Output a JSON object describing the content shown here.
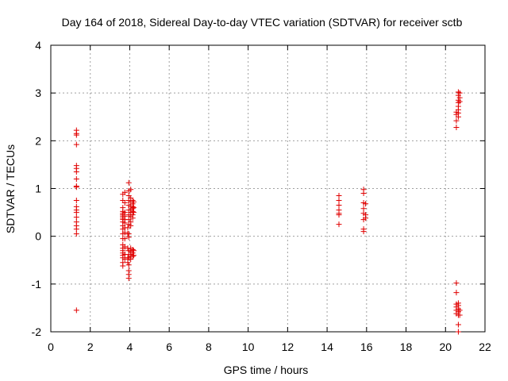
{
  "chart_data": {
    "type": "scatter",
    "title": "Day 164 of 2018, Sidereal Day-to-day VTEC variation (SDTVAR) for receiver sctb",
    "xlabel": "GPS time / hours",
    "ylabel": "SDTVAR / TECUs",
    "xlim": [
      0,
      22
    ],
    "ylim": [
      -2,
      4
    ],
    "xticks": [
      0,
      2,
      4,
      6,
      8,
      10,
      12,
      14,
      16,
      18,
      20,
      22
    ],
    "yticks": [
      -2,
      -1,
      0,
      1,
      2,
      3,
      4
    ],
    "grid": true,
    "marker": "+",
    "color": "#e00000",
    "series": [
      {
        "name": "SDTVAR",
        "points": [
          [
            1.3,
            2.22
          ],
          [
            1.3,
            2.15
          ],
          [
            1.3,
            2.12
          ],
          [
            1.3,
            1.92
          ],
          [
            1.3,
            1.48
          ],
          [
            1.3,
            1.42
          ],
          [
            1.3,
            1.35
          ],
          [
            1.3,
            1.2
          ],
          [
            1.3,
            1.05
          ],
          [
            1.3,
            1.03
          ],
          [
            1.3,
            0.75
          ],
          [
            1.3,
            0.62
          ],
          [
            1.3,
            0.55
          ],
          [
            1.3,
            0.5
          ],
          [
            1.3,
            0.4
          ],
          [
            1.3,
            0.3
          ],
          [
            1.3,
            0.22
          ],
          [
            1.3,
            0.15
          ],
          [
            1.3,
            0.05
          ],
          [
            1.3,
            -1.55
          ],
          [
            3.65,
            0.88
          ],
          [
            3.65,
            0.75
          ],
          [
            3.65,
            0.6
          ],
          [
            3.65,
            0.52
          ],
          [
            3.65,
            0.48
          ],
          [
            3.65,
            0.45
          ],
          [
            3.65,
            0.42
          ],
          [
            3.65,
            0.38
          ],
          [
            3.65,
            0.35
          ],
          [
            3.65,
            0.3
          ],
          [
            3.65,
            0.22
          ],
          [
            3.65,
            0.15
          ],
          [
            3.65,
            0.05
          ],
          [
            3.65,
            -0.05
          ],
          [
            3.65,
            -0.18
          ],
          [
            3.65,
            -0.25
          ],
          [
            3.65,
            -0.3
          ],
          [
            3.65,
            -0.35
          ],
          [
            3.65,
            -0.4
          ],
          [
            3.65,
            -0.45
          ],
          [
            3.65,
            -0.55
          ],
          [
            3.65,
            -0.62
          ],
          [
            3.75,
            0.92
          ],
          [
            3.75,
            0.7
          ],
          [
            3.75,
            0.5
          ],
          [
            3.75,
            0.42
          ],
          [
            3.75,
            0.35
          ],
          [
            3.75,
            0.28
          ],
          [
            3.75,
            0.18
          ],
          [
            3.75,
            0.08
          ],
          [
            3.75,
            -0.05
          ],
          [
            3.75,
            -0.22
          ],
          [
            3.75,
            -0.38
          ],
          [
            3.75,
            -0.48
          ],
          [
            3.9,
            0.18
          ],
          [
            3.9,
            0.05
          ],
          [
            3.9,
            -0.25
          ],
          [
            3.9,
            -0.45
          ],
          [
            3.9,
            -0.55
          ],
          [
            3.95,
            1.12
          ],
          [
            3.95,
            0.95
          ],
          [
            3.95,
            0.85
          ],
          [
            3.95,
            0.75
          ],
          [
            3.95,
            0.65
          ],
          [
            3.95,
            0.55
          ],
          [
            3.95,
            0.45
          ],
          [
            3.95,
            0.35
          ],
          [
            3.95,
            0.25
          ],
          [
            3.95,
            0.05
          ],
          [
            3.95,
            -0.02
          ],
          [
            3.95,
            -0.3
          ],
          [
            3.95,
            -0.38
          ],
          [
            3.95,
            -0.45
          ],
          [
            3.95,
            -0.6
          ],
          [
            3.95,
            -0.72
          ],
          [
            3.95,
            -0.8
          ],
          [
            3.95,
            -0.88
          ],
          [
            4.05,
            0.98
          ],
          [
            4.05,
            0.8
          ],
          [
            4.05,
            0.72
          ],
          [
            4.05,
            0.62
          ],
          [
            4.05,
            0.55
          ],
          [
            4.05,
            0.5
          ],
          [
            4.05,
            0.42
          ],
          [
            4.05,
            0.3
          ],
          [
            4.05,
            0.22
          ],
          [
            4.05,
            -0.25
          ],
          [
            4.05,
            -0.32
          ],
          [
            4.05,
            -0.38
          ],
          [
            4.05,
            -0.42
          ],
          [
            4.05,
            -0.48
          ],
          [
            4.15,
            0.75
          ],
          [
            4.15,
            0.68
          ],
          [
            4.15,
            0.62
          ],
          [
            4.15,
            0.58
          ],
          [
            4.15,
            0.52
          ],
          [
            4.15,
            0.45
          ],
          [
            4.15,
            0.38
          ],
          [
            4.15,
            -0.28
          ],
          [
            4.15,
            -0.35
          ],
          [
            4.15,
            -0.42
          ],
          [
            4.2,
            0.72
          ],
          [
            4.2,
            0.6
          ],
          [
            4.2,
            0.5
          ],
          [
            4.2,
            -0.3
          ],
          [
            4.2,
            -0.4
          ],
          [
            14.6,
            0.85
          ],
          [
            14.6,
            0.75
          ],
          [
            14.6,
            0.65
          ],
          [
            14.6,
            0.55
          ],
          [
            14.6,
            0.48
          ],
          [
            14.6,
            0.45
          ],
          [
            14.6,
            0.25
          ],
          [
            15.85,
            0.98
          ],
          [
            15.85,
            0.9
          ],
          [
            15.85,
            0.7
          ],
          [
            15.85,
            0.58
          ],
          [
            15.85,
            0.48
          ],
          [
            15.85,
            0.35
          ],
          [
            15.85,
            0.15
          ],
          [
            15.85,
            0.1
          ],
          [
            15.95,
            0.68
          ],
          [
            15.95,
            0.45
          ],
          [
            15.95,
            0.38
          ],
          [
            20.55,
            2.6
          ],
          [
            20.55,
            2.55
          ],
          [
            20.55,
            2.42
          ],
          [
            20.55,
            2.28
          ],
          [
            20.55,
            -0.98
          ],
          [
            20.55,
            -1.18
          ],
          [
            20.55,
            -1.42
          ],
          [
            20.55,
            -1.48
          ],
          [
            20.55,
            -1.55
          ],
          [
            20.55,
            -1.62
          ],
          [
            20.65,
            3.02
          ],
          [
            20.65,
            2.95
          ],
          [
            20.65,
            2.85
          ],
          [
            20.65,
            2.8
          ],
          [
            20.65,
            2.72
          ],
          [
            20.65,
            2.65
          ],
          [
            20.65,
            2.58
          ],
          [
            20.65,
            2.5
          ],
          [
            20.65,
            -1.4
          ],
          [
            20.65,
            -1.45
          ],
          [
            20.65,
            -1.52
          ],
          [
            20.65,
            -1.58
          ],
          [
            20.65,
            -1.65
          ],
          [
            20.65,
            -1.85
          ],
          [
            20.65,
            -2.0
          ],
          [
            20.72,
            3.0
          ],
          [
            20.72,
            2.9
          ],
          [
            20.72,
            2.82
          ],
          [
            20.72,
            -1.55
          ],
          [
            20.72,
            -1.65
          ]
        ]
      }
    ]
  }
}
